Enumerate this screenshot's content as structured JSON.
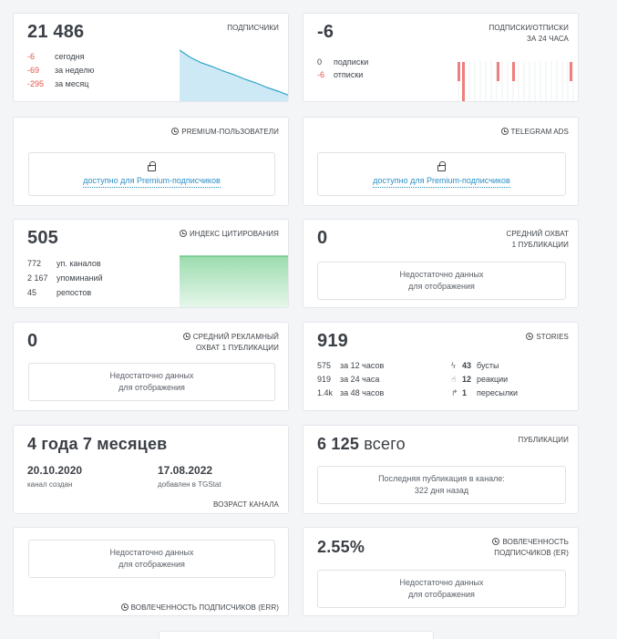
{
  "subscribers": {
    "value": "21 486",
    "label": "ПОДПИСЧИКИ",
    "rows": [
      {
        "n": "-6",
        "t": "сегодня"
      },
      {
        "n": "-69",
        "t": "за неделю"
      },
      {
        "n": "-295",
        "t": "за месяц"
      }
    ],
    "color": "#2ca2c9"
  },
  "subs_unsubs": {
    "value": "-6",
    "label_line1": "ПОДПИСКИ/ОТПИСКИ",
    "label_line2": "ЗА 24 ЧАСА",
    "rows": [
      {
        "n": "0",
        "t": "подписки"
      },
      {
        "n": "-6",
        "t": "отписки"
      }
    ],
    "bar_color": "#ef7e7e"
  },
  "premium_users": {
    "label": "PREMIUM-ПОЛЬЗОВАТЕЛИ",
    "lock_text": "доступно для Premium-подписчиков"
  },
  "telegram_ads": {
    "label": "TELEGRAM ADS",
    "lock_text": "доступно для Premium-подписчиков"
  },
  "citation": {
    "value": "505",
    "label": "ИНДЕКС ЦИТИРОВАНИЯ",
    "rows": [
      {
        "n": "772",
        "t": "уп. каналов"
      },
      {
        "n": "2 167",
        "t": "упоминаний"
      },
      {
        "n": "45",
        "t": "репостов"
      }
    ],
    "color": "#5cc37a"
  },
  "avg_reach": {
    "value": "0",
    "label_line1": "СРЕДНИЙ ОХВАТ",
    "label_line2": "1 ПУБЛИКАЦИИ",
    "msg_line1": "Недостаточно данных",
    "msg_line2": "для отображения"
  },
  "ad_reach": {
    "value": "0",
    "label_line1": "СРЕДНИЙ РЕКЛАМНЫЙ",
    "label_line2": "ОХВАТ 1 ПУБЛИКАЦИИ",
    "msg_line1": "Недостаточно данных",
    "msg_line2": "для отображения"
  },
  "stories": {
    "value": "919",
    "label": "STORIES",
    "left": [
      {
        "n": "575",
        "t": "за 12 часов"
      },
      {
        "n": "919",
        "t": "за 24 часа"
      },
      {
        "n": "1.4k",
        "t": "за 48 часов"
      }
    ],
    "right": [
      {
        "n": "43",
        "t": "бусты",
        "icon": "boost-icon"
      },
      {
        "n": "12",
        "t": "реакции",
        "icon": "thumbs-up-icon"
      },
      {
        "n": "1",
        "t": "пересылки",
        "icon": "forward-icon"
      }
    ]
  },
  "age": {
    "value": "4 года 7 месяцев",
    "created_date": "20.10.2020",
    "created_label": "канал создан",
    "added_date": "17.08.2022",
    "added_label": "добавлен в TGStat",
    "label": "ВОЗРАСТ КАНАЛА"
  },
  "publications": {
    "value": "6 125",
    "value_suffix": "всего",
    "label": "ПУБЛИКАЦИИ",
    "msg_line1": "Последняя публикация в канале:",
    "msg_line2": "322 дня назад"
  },
  "err_left": {
    "msg_line1": "Недостаточно данных",
    "msg_line2": "для отображения",
    "label": "ВОВЛЕЧЕННОСТЬ ПОДПИСЧИКОВ (ERR)"
  },
  "err_right": {
    "value": "2.55%",
    "label_line1": "ВОВЛЕЧЕННОСТЬ",
    "label_line2": "ПОДПИСЧИКОВ (ER)",
    "msg_line1": "Недостаточно данных",
    "msg_line2": "для отображения"
  }
}
